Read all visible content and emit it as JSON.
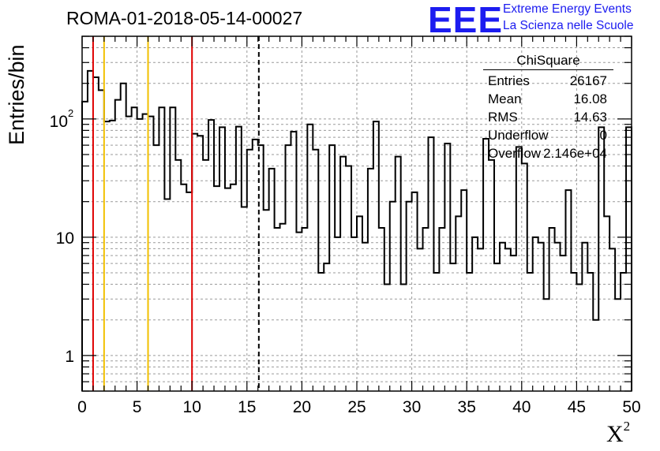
{
  "header": {
    "title": "ROMA-01-2018-05-14-00027",
    "logo_text": "EEE",
    "logo_line1": "Extreme Energy Events",
    "logo_line2": "La Scienza nelle Scuole"
  },
  "colors": {
    "logo": "#1c1cf0",
    "red_line": "#e00000",
    "orange_line": "#f2c000",
    "histogram": "#000000",
    "grid": "#9a9a9a"
  },
  "stats": {
    "title": "ChiSquare",
    "rows": [
      {
        "key": "Entries",
        "value": "26167"
      },
      {
        "key": "Mean",
        "value": "16.08"
      },
      {
        "key": "RMS",
        "value": "14.63"
      },
      {
        "key": "Underflow",
        "value": "0"
      },
      {
        "key": "Overflow",
        "value": "2.146e+04"
      }
    ]
  },
  "chart_data": {
    "type": "histogram",
    "ylabel": "Entries/bin",
    "xlabel": "X",
    "xlabel_sup": "2",
    "xlim": [
      0,
      50
    ],
    "ylim": [
      0.5,
      500
    ],
    "yscale": "log",
    "grid": true,
    "bin_width": 0.5,
    "xticks": [
      0,
      5,
      10,
      15,
      20,
      25,
      30,
      35,
      40,
      45,
      50
    ],
    "xtick_labels": [
      "0",
      "5",
      "10",
      "15",
      "20",
      "25",
      "30",
      "35",
      "40",
      "45",
      "50"
    ],
    "yticks": [
      1,
      10,
      100
    ],
    "ytick_labels": [
      "1",
      "10",
      "10",
      "2"
    ],
    "counts": [
      140,
      255,
      225,
      175,
      95,
      97,
      145,
      200,
      105,
      125,
      100,
      110,
      105,
      60,
      125,
      21,
      125,
      45,
      28,
      24,
      75,
      72,
      45,
      98,
      27,
      85,
      26,
      28,
      86,
      18,
      55,
      67,
      60,
      17,
      38,
      12,
      13,
      60,
      78,
      11,
      12,
      90,
      55,
      5,
      6,
      60,
      10,
      48,
      40,
      10,
      15,
      9,
      38,
      95,
      12,
      4,
      20,
      48,
      4,
      20,
      24,
      8,
      12,
      70,
      5,
      12,
      62,
      6,
      15,
      25,
      5,
      10,
      8,
      68,
      45,
      6,
      9,
      8,
      7,
      58,
      42,
      5,
      10,
      9,
      3,
      12,
      9,
      7,
      25,
      5,
      4,
      9,
      5,
      2,
      85,
      15,
      8,
      3,
      5,
      85
    ],
    "vertical_lines": [
      {
        "x": 1,
        "color": "red",
        "style": "solid"
      },
      {
        "x": 2,
        "color": "orange",
        "style": "solid"
      },
      {
        "x": 6,
        "color": "orange",
        "style": "solid"
      },
      {
        "x": 10,
        "color": "red",
        "style": "solid"
      },
      {
        "x": 16.08,
        "color": "black",
        "style": "dashed"
      }
    ]
  }
}
